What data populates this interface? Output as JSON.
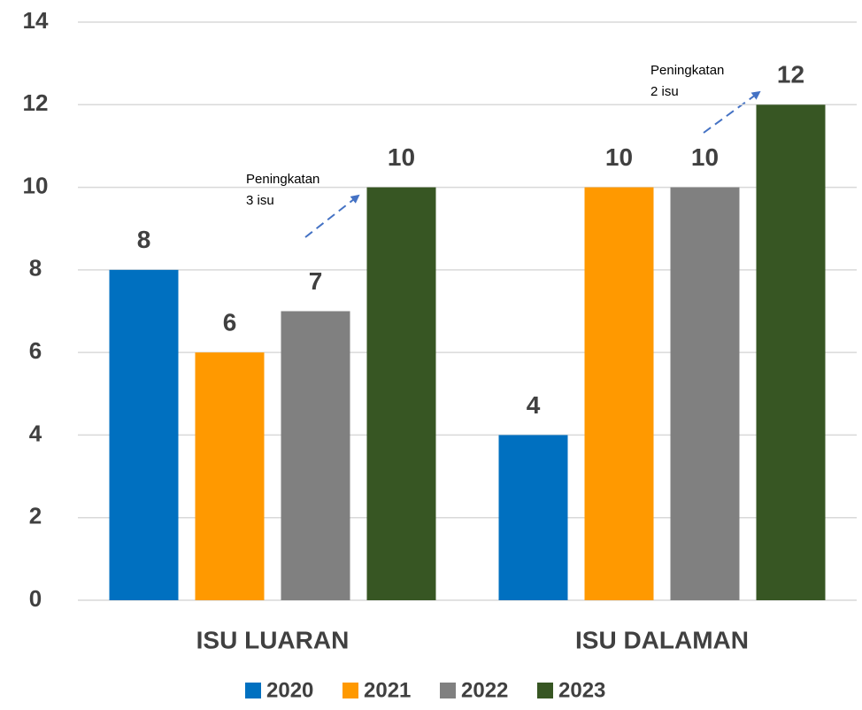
{
  "chart_data": {
    "type": "bar",
    "categories": [
      "ISU LUARAN",
      "ISU DALAMAN"
    ],
    "series": [
      {
        "name": "2020",
        "color": "#0070c0",
        "values": [
          8,
          4
        ]
      },
      {
        "name": "2021",
        "color": "#ff9900",
        "values": [
          6,
          10
        ]
      },
      {
        "name": "2022",
        "color": "#808080",
        "values": [
          7,
          10
        ]
      },
      {
        "name": "2023",
        "color": "#375623",
        "values": [
          10,
          12
        ]
      }
    ],
    "ylim": [
      0,
      14
    ],
    "yticks": [
      0,
      2,
      4,
      6,
      8,
      10,
      12,
      14
    ],
    "grid": true,
    "legend": "bottom",
    "annotations": [
      {
        "lines": [
          "Peningkatan",
          "3 isu"
        ]
      },
      {
        "lines": [
          "Peningkatan",
          "2 isu"
        ]
      }
    ]
  }
}
